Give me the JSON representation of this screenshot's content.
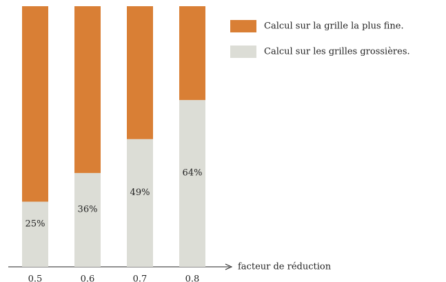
{
  "chart_data": {
    "type": "stacked-bar",
    "xlabel": "facteur de réduction",
    "categories": [
      "0.5",
      "0.6",
      "0.7",
      "0.8"
    ],
    "ylim": [
      0,
      100
    ],
    "series": [
      {
        "name": "Calcul sur les grilles grossières.",
        "color": "#dcddd6",
        "values": [
          25,
          36,
          49,
          64
        ],
        "value_labels": [
          "25%",
          "36%",
          "49%",
          "64%"
        ]
      },
      {
        "name": "Calcul sur la grille la plus fine.",
        "color": "#d97f35",
        "values": [
          75,
          64,
          51,
          36
        ]
      }
    ]
  }
}
